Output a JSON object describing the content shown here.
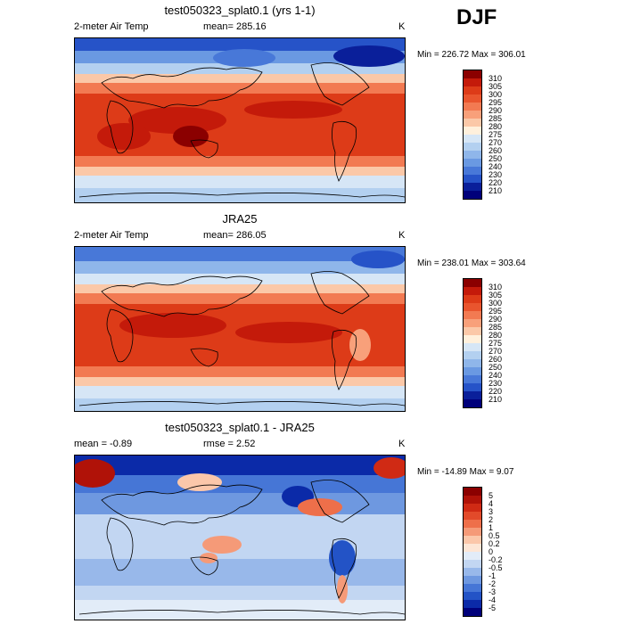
{
  "season": "DJF",
  "panels": [
    {
      "title": "test050323_splat0.1 (yrs 1-1)",
      "variable": "2-meter Air Temp",
      "stat1": "mean= 285.16",
      "stat2": "",
      "units": "K",
      "minmax": "Min = 226.72 Max = 306.01",
      "colorbar": {
        "labels": [
          "310",
          "305",
          "300",
          "295",
          "290",
          "285",
          "280",
          "275",
          "270",
          "260",
          "250",
          "240",
          "230",
          "220",
          "210"
        ],
        "colors": [
          "#8b0000",
          "#c41a0a",
          "#dd3b18",
          "#e9552e",
          "#f27a52",
          "#f8a07a",
          "#fbc8a8",
          "#fff0dc",
          "#d6e6f6",
          "#b3d0f0",
          "#8fb6ea",
          "#6a99e2",
          "#4878d8",
          "#2653c8",
          "#0a1f9a",
          "#00007a"
        ]
      }
    },
    {
      "title": "JRA25",
      "variable": "2-meter Air Temp",
      "stat1": "mean= 286.05",
      "stat2": "",
      "units": "K",
      "minmax": "Min = 238.01 Max = 303.64",
      "colorbar": {
        "labels": [
          "310",
          "305",
          "300",
          "295",
          "290",
          "285",
          "280",
          "275",
          "270",
          "260",
          "250",
          "240",
          "230",
          "220",
          "210"
        ],
        "colors": [
          "#8b0000",
          "#c41a0a",
          "#dd3b18",
          "#e9552e",
          "#f27a52",
          "#f8a07a",
          "#fbc8a8",
          "#fff0dc",
          "#d6e6f6",
          "#b3d0f0",
          "#8fb6ea",
          "#6a99e2",
          "#4878d8",
          "#2653c8",
          "#0a1f9a",
          "#00007a"
        ]
      }
    },
    {
      "title": "test050323_splat0.1 - JRA25",
      "variable": "",
      "stat1": "mean = -0.89",
      "stat2": "rmse = 2.52",
      "units": "K",
      "minmax": "Min = -14.89 Max = 9.07",
      "colorbar": {
        "labels": [
          "5",
          "4",
          "3",
          "2",
          "1",
          "0.5",
          "0.2",
          "0",
          "-0.2",
          "-0.5",
          "-1",
          "-2",
          "-3",
          "-4",
          "-5"
        ],
        "colors": [
          "#8b0000",
          "#b01208",
          "#d02a14",
          "#e24a2a",
          "#ee6f4a",
          "#f59a78",
          "#fbc7aa",
          "#fde6d6",
          "#e2ecf8",
          "#c2d6f2",
          "#98b8ea",
          "#6e98e0",
          "#4676d6",
          "#2353c6",
          "#0b2aa8",
          "#00007a"
        ]
      }
    }
  ]
}
